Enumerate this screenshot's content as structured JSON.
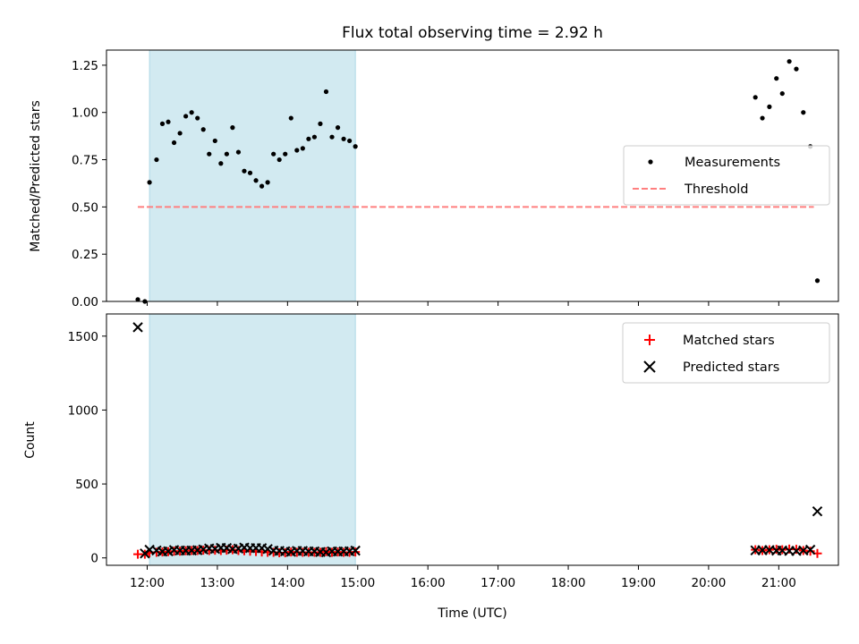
{
  "chart_data": {
    "title": "Flux total observing time = 2.92 h",
    "xlabel": "Time (UTC)",
    "x_range_hours": [
      11.42,
      21.85
    ],
    "x_ticks": [
      "12:00",
      "13:00",
      "14:00",
      "15:00",
      "16:00",
      "17:00",
      "18:00",
      "19:00",
      "20:00",
      "21:00"
    ],
    "shaded_interval": [
      "12:02",
      "14:58"
    ],
    "shade_color": "#add8e6",
    "panels": [
      {
        "type": "scatter",
        "ylabel": "Matched/Predicted stars",
        "ylim": [
          0,
          1.33
        ],
        "y_ticks": [
          "0.00",
          "0.25",
          "0.50",
          "0.75",
          "1.00",
          "1.25"
        ],
        "legend": {
          "position": "center-right",
          "entries": [
            "Measurements",
            "Threshold"
          ]
        },
        "series": [
          {
            "name": "Measurements",
            "color": "#000000",
            "marker": "dot",
            "points": [
              [
                "11:52",
                0.01
              ],
              [
                "11:58",
                0.0
              ],
              [
                "12:02",
                0.63
              ],
              [
                "12:08",
                0.75
              ],
              [
                "12:13",
                0.94
              ],
              [
                "12:18",
                0.95
              ],
              [
                "12:23",
                0.84
              ],
              [
                "12:28",
                0.89
              ],
              [
                "12:33",
                0.98
              ],
              [
                "12:38",
                1.0
              ],
              [
                "12:43",
                0.97
              ],
              [
                "12:48",
                0.91
              ],
              [
                "12:53",
                0.78
              ],
              [
                "12:58",
                0.85
              ],
              [
                "13:03",
                0.73
              ],
              [
                "13:08",
                0.78
              ],
              [
                "13:13",
                0.92
              ],
              [
                "13:18",
                0.79
              ],
              [
                "13:23",
                0.69
              ],
              [
                "13:28",
                0.68
              ],
              [
                "13:33",
                0.64
              ],
              [
                "13:38",
                0.61
              ],
              [
                "13:43",
                0.63
              ],
              [
                "13:48",
                0.78
              ],
              [
                "13:53",
                0.75
              ],
              [
                "13:58",
                0.78
              ],
              [
                "14:03",
                0.97
              ],
              [
                "14:08",
                0.8
              ],
              [
                "14:13",
                0.81
              ],
              [
                "14:18",
                0.86
              ],
              [
                "14:23",
                0.87
              ],
              [
                "14:28",
                0.94
              ],
              [
                "14:33",
                1.11
              ],
              [
                "14:38",
                0.87
              ],
              [
                "14:43",
                0.92
              ],
              [
                "14:48",
                0.86
              ],
              [
                "14:53",
                0.85
              ],
              [
                "14:58",
                0.82
              ],
              [
                "20:40",
                1.08
              ],
              [
                "20:46",
                0.97
              ],
              [
                "20:52",
                1.03
              ],
              [
                "20:58",
                1.18
              ],
              [
                "21:03",
                1.1
              ],
              [
                "21:09",
                1.27
              ],
              [
                "21:15",
                1.23
              ],
              [
                "21:21",
                1.0
              ],
              [
                "21:27",
                0.82
              ],
              [
                "21:33",
                0.11
              ]
            ]
          },
          {
            "name": "Threshold",
            "color": "#ff7f7f",
            "style": "dashed",
            "points": [
              [
                "11:52",
                0.5
              ],
              [
                "21:30",
                0.5
              ]
            ]
          }
        ]
      },
      {
        "type": "scatter",
        "ylabel": "Count",
        "ylim": [
          -50,
          1650
        ],
        "y_ticks": [
          "0",
          "500",
          "1000",
          "1500"
        ],
        "legend": {
          "position": "top-right",
          "entries": [
            "Matched stars",
            "Predicted stars"
          ]
        },
        "series": [
          {
            "name": "Matched stars",
            "color": "#ff0000",
            "marker": "plus",
            "points": [
              [
                "11:52",
                25
              ],
              [
                "11:58",
                25
              ],
              [
                "12:02",
                35
              ],
              [
                "12:08",
                38
              ],
              [
                "12:13",
                40
              ],
              [
                "12:18",
                42
              ],
              [
                "12:23",
                45
              ],
              [
                "12:28",
                45
              ],
              [
                "12:33",
                48
              ],
              [
                "12:38",
                50
              ],
              [
                "12:43",
                50
              ],
              [
                "12:48",
                52
              ],
              [
                "12:53",
                50
              ],
              [
                "12:58",
                52
              ],
              [
                "13:03",
                50
              ],
              [
                "13:08",
                52
              ],
              [
                "13:13",
                55
              ],
              [
                "13:18",
                50
              ],
              [
                "13:23",
                48
              ],
              [
                "13:28",
                45
              ],
              [
                "13:33",
                43
              ],
              [
                "13:38",
                40
              ],
              [
                "13:43",
                38
              ],
              [
                "13:48",
                38
              ],
              [
                "13:53",
                35
              ],
              [
                "13:58",
                35
              ],
              [
                "14:03",
                40
              ],
              [
                "14:08",
                38
              ],
              [
                "14:13",
                38
              ],
              [
                "14:18",
                38
              ],
              [
                "14:23",
                38
              ],
              [
                "14:28",
                38
              ],
              [
                "14:33",
                42
              ],
              [
                "14:38",
                38
              ],
              [
                "14:43",
                40
              ],
              [
                "14:48",
                38
              ],
              [
                "14:53",
                38
              ],
              [
                "14:58",
                40
              ],
              [
                "20:40",
                55
              ],
              [
                "20:46",
                50
              ],
              [
                "20:52",
                55
              ],
              [
                "20:58",
                58
              ],
              [
                "21:03",
                55
              ],
              [
                "21:09",
                60
              ],
              [
                "21:15",
                58
              ],
              [
                "21:21",
                50
              ],
              [
                "21:27",
                45
              ],
              [
                "21:33",
                30
              ]
            ]
          },
          {
            "name": "Predicted stars",
            "color": "#000000",
            "marker": "x",
            "points": [
              [
                "11:52",
                1560
              ],
              [
                "11:58",
                30
              ],
              [
                "12:02",
                55
              ],
              [
                "12:08",
                50
              ],
              [
                "12:13",
                43
              ],
              [
                "12:18",
                45
              ],
              [
                "12:23",
                53
              ],
              [
                "12:28",
                50
              ],
              [
                "12:33",
                49
              ],
              [
                "12:38",
                50
              ],
              [
                "12:43",
                52
              ],
              [
                "12:48",
                57
              ],
              [
                "12:53",
                64
              ],
              [
                "12:58",
                61
              ],
              [
                "13:03",
                68
              ],
              [
                "13:08",
                67
              ],
              [
                "13:13",
                60
              ],
              [
                "13:18",
                63
              ],
              [
                "13:23",
                70
              ],
              [
                "13:28",
                66
              ],
              [
                "13:33",
                67
              ],
              [
                "13:38",
                66
              ],
              [
                "13:43",
                60
              ],
              [
                "13:48",
                49
              ],
              [
                "13:53",
                47
              ],
              [
                "13:58",
                45
              ],
              [
                "14:03",
                41
              ],
              [
                "14:08",
                47
              ],
              [
                "14:13",
                47
              ],
              [
                "14:18",
                44
              ],
              [
                "14:23",
                44
              ],
              [
                "14:28",
                40
              ],
              [
                "14:33",
                38
              ],
              [
                "14:38",
                44
              ],
              [
                "14:43",
                43
              ],
              [
                "14:48",
                44
              ],
              [
                "14:53",
                45
              ],
              [
                "14:58",
                49
              ],
              [
                "20:40",
                51
              ],
              [
                "20:46",
                52
              ],
              [
                "20:52",
                53
              ],
              [
                "20:58",
                49
              ],
              [
                "21:03",
                50
              ],
              [
                "21:09",
                47
              ],
              [
                "21:15",
                47
              ],
              [
                "21:21",
                50
              ],
              [
                "21:27",
                55
              ],
              [
                "21:33",
                315
              ]
            ]
          }
        ]
      }
    ]
  }
}
